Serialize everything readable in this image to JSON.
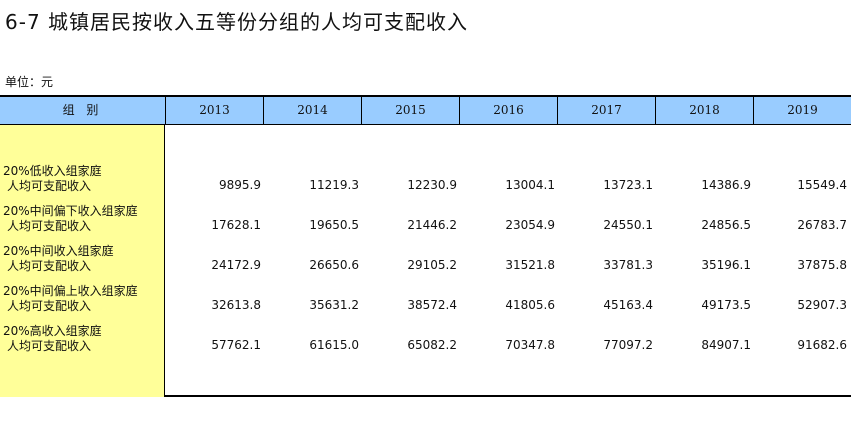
{
  "title": "6-7   城镇居民按收入五等份分组的人均可支配收入",
  "unit": "单位：元",
  "table": {
    "header_label": "组 别",
    "years": [
      "2013",
      "2014",
      "2015",
      "2016",
      "2017",
      "2018",
      "2019"
    ],
    "rows": [
      {
        "label1": "20%低收入组家庭",
        "label2": "人均可支配收入",
        "values": [
          "9895.9",
          "11219.3",
          "12230.9",
          "13004.1",
          "13723.1",
          "14386.9",
          "15549.4"
        ]
      },
      {
        "label1": "20%中间偏下收入组家庭",
        "label2": "人均可支配收入",
        "values": [
          "17628.1",
          "19650.5",
          "21446.2",
          "23054.9",
          "24550.1",
          "24856.5",
          "26783.7"
        ]
      },
      {
        "label1": "20%中间收入组家庭",
        "label2": "人均可支配收入",
        "values": [
          "24172.9",
          "26650.6",
          "29105.2",
          "31521.8",
          "33781.3",
          "35196.1",
          "37875.8"
        ]
      },
      {
        "label1": "20%中间偏上收入组家庭",
        "label2": "人均可支配收入",
        "values": [
          "32613.8",
          "35631.2",
          "38572.4",
          "41805.6",
          "45163.4",
          "49173.5",
          "52907.3"
        ]
      },
      {
        "label1": "20%高收入组家庭",
        "label2": "人均可支配收入",
        "values": [
          "57762.1",
          "61615.0",
          "65082.2",
          "70347.8",
          "77097.2",
          "84907.1",
          "91682.6"
        ]
      }
    ]
  }
}
